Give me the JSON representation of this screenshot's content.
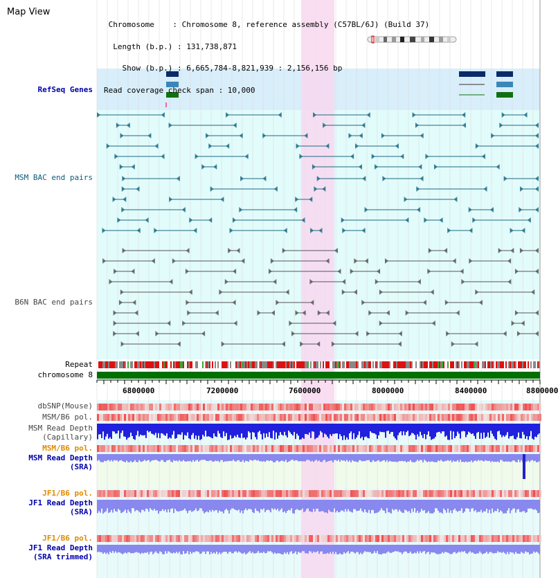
{
  "header": {
    "title": "Map View",
    "info_lines": [
      " Chromosome    : Chromosome 8, reference assembly (C57BL/6J) (Build 37)",
      "  Length (b.p.) : 131,738,871",
      "    Show (b.p.) : 6,665,784-8,821,939 : 2,156,156 bp",
      "Read coverage check span : 10,000"
    ]
  },
  "tracks": {
    "refseq_genes": "RefSeq Genes",
    "msm_bac": "MSM BAC end pairs",
    "b6n_bac": "B6N BAC end pairs",
    "repeat": "Repeat",
    "chromosome": "chromosome 8",
    "dbsnp": "dbSNP(Mouse)",
    "msm_b6_pol_1": "MSM/B6 pol.",
    "msm_depth_cap_1": "MSM Read Depth",
    "msm_depth_cap_2": "(Capillary)",
    "msm_b6_pol_2": "MSM/B6 pol.",
    "msm_depth_sra_1": "MSM Read Depth",
    "msm_depth_sra_2": "(SRA)",
    "jf1_b6_pol_1": "JF1/B6 pol.",
    "jf1_depth_sra_1": "JF1 Read Depth",
    "jf1_depth_sra_2": "(SRA)",
    "jf1_b6_pol_2": "JF1/B6 pol.",
    "jf1_depth_trim_1": "JF1 Read Depth",
    "jf1_depth_trim_2": "(SRA trimmed)"
  },
  "axis": {
    "ticks": [
      "6800000",
      "7200000",
      "7600000",
      "8000000",
      "8400000",
      "8800000"
    ]
  },
  "colors": {
    "refseq_bg": "#d8eefa",
    "bac_bg": "#e2fbfb",
    "highlight": "#f8d8f0",
    "chromosome_bar": "#007000",
    "msm_line": "#1a6a80",
    "b6n_line": "#555555",
    "depth_capillary": "#2020dd",
    "depth_sra": "#8888ee"
  }
}
